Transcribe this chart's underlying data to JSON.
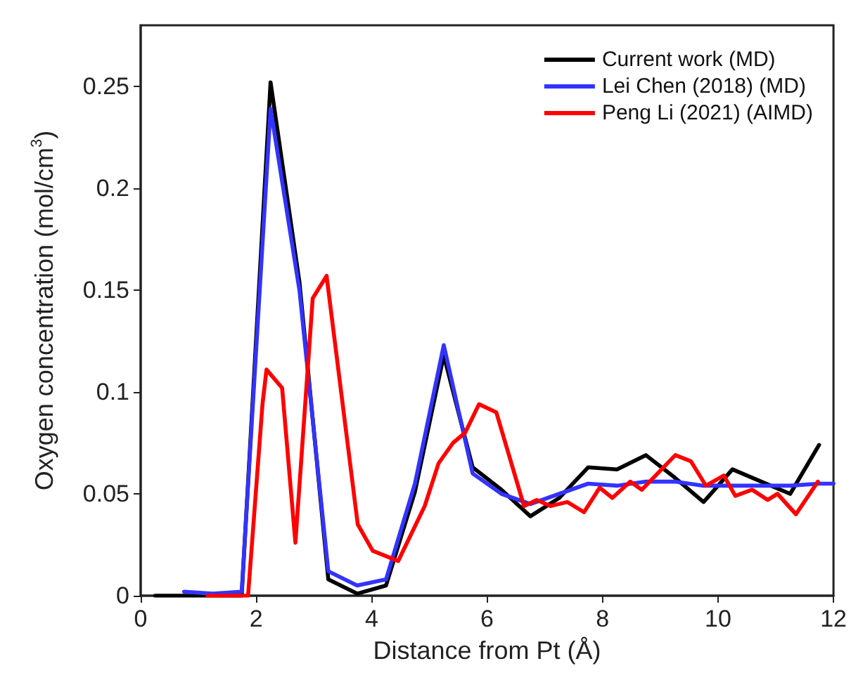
{
  "chart_data": {
    "type": "line",
    "xlabel": "Distance from Pt (Å)",
    "ylabel": "Oxygen concentration (mol/cm$^{3}$)",
    "xlim": [
      0,
      12
    ],
    "xticks": [
      0,
      2,
      4,
      6,
      8,
      10,
      12
    ],
    "ylim": [
      0,
      0.28
    ],
    "yticks": [
      0,
      0.05,
      0.1,
      0.15,
      0.2,
      0.25
    ],
    "grid": false,
    "legend": "top right",
    "marker": "none",
    "line_style": "solid",
    "series": [
      {
        "name": "Current work (MD)",
        "color": "#000000",
        "x": [
          0.25,
          0.75,
          1.25,
          1.75,
          2.25,
          2.75,
          3.25,
          3.75,
          4.25,
          4.75,
          5.25,
          5.75,
          6.25,
          6.75,
          7.25,
          7.75,
          8.25,
          8.75,
          9.25,
          9.75,
          10.25,
          10.75,
          11.25,
          11.75
        ],
        "values": [
          0,
          0,
          0,
          0,
          0.252,
          0.154,
          0.008,
          0.001,
          0.005,
          0.051,
          0.118,
          0.063,
          0.052,
          0.039,
          0.048,
          0.063,
          0.062,
          0.069,
          0.058,
          0.046,
          0.062,
          0.056,
          0.05,
          0.074
        ]
      },
      {
        "name": "Lei Chen (2018) (MD)",
        "color": "#3333ff",
        "x": [
          0.75,
          1.25,
          1.75,
          2.25,
          2.75,
          3.25,
          3.75,
          4.25,
          4.75,
          5.25,
          5.75,
          6.25,
          6.75,
          7.25,
          7.75,
          8.25,
          8.75,
          9.25,
          9.75,
          10.25,
          10.75,
          11.25,
          11.75,
          12
        ],
        "values": [
          0.002,
          0.001,
          0.002,
          0.239,
          0.15,
          0.012,
          0.005,
          0.008,
          0.055,
          0.123,
          0.06,
          0.05,
          0.045,
          0.05,
          0.055,
          0.054,
          0.056,
          0.056,
          0.054,
          0.054,
          0.054,
          0.054,
          0.055,
          0.055
        ]
      },
      {
        "name": "Peng Li (2021) (AIMD)",
        "color": "#ff0000",
        "x": [
          1.16,
          1.86,
          2.11,
          2.18,
          2.45,
          2.68,
          2.98,
          3.22,
          3.76,
          4.02,
          4.46,
          4.92,
          5.16,
          5.41,
          5.62,
          5.86,
          6.16,
          6.64,
          6.86,
          7.1,
          7.39,
          7.68,
          7.95,
          8.17,
          8.48,
          8.68,
          9.26,
          9.53,
          9.79,
          10.1,
          10.3,
          10.59,
          10.86,
          11.03,
          11.35,
          11.73
        ],
        "values": [
          0,
          0,
          0.094,
          0.111,
          0.102,
          0.026,
          0.146,
          0.157,
          0.035,
          0.022,
          0.017,
          0.044,
          0.065,
          0.075,
          0.08,
          0.094,
          0.09,
          0.044,
          0.047,
          0.044,
          0.046,
          0.041,
          0.053,
          0.048,
          0.056,
          0.052,
          0.069,
          0.066,
          0.054,
          0.059,
          0.049,
          0.052,
          0.047,
          0.05,
          0.04,
          0.056
        ]
      }
    ]
  }
}
